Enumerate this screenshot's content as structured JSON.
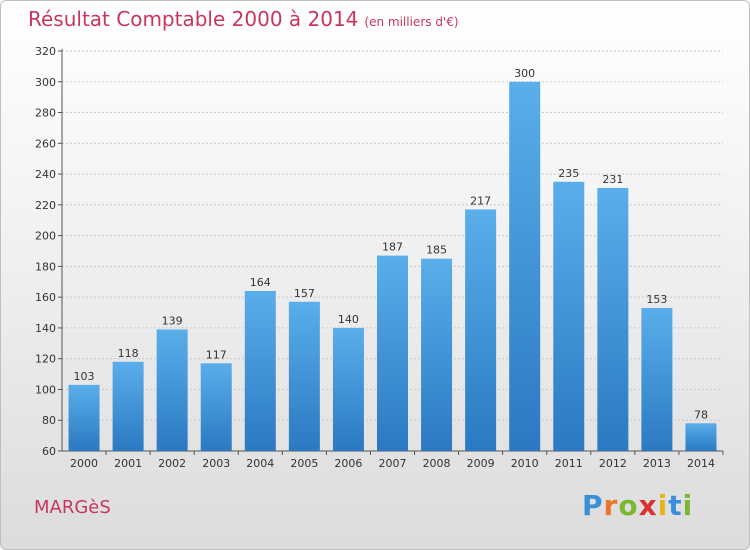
{
  "header": {
    "title": "Résultat Comptable 2000 à 2014",
    "subtitle": "(en milliers d'€)"
  },
  "footer": {
    "commune": "MARGèS",
    "logo_letters": [
      "P",
      "r",
      "o",
      "x",
      "i",
      "t",
      "i"
    ],
    "logo_colors": [
      "#3a8fd8",
      "#e9742b",
      "#7bb734",
      "#d9322f",
      "#e9b320",
      "#3a8fd8",
      "#7bb734"
    ]
  },
  "colors": {
    "bar": "#4a9fe0",
    "bar_dark": "#2f7fc7",
    "title": "#c8365e"
  },
  "chart_data": {
    "type": "bar",
    "title": "Résultat Comptable 2000 à 2014",
    "subtitle": "(en milliers d'€)",
    "categories": [
      "2000",
      "2001",
      "2002",
      "2003",
      "2004",
      "2005",
      "2006",
      "2007",
      "2008",
      "2009",
      "2010",
      "2011",
      "2012",
      "2013",
      "2014"
    ],
    "values": [
      103,
      118,
      139,
      117,
      164,
      157,
      140,
      187,
      185,
      217,
      300,
      235,
      231,
      153,
      78
    ],
    "ylim": [
      60,
      320
    ],
    "yticks": [
      60,
      80,
      100,
      120,
      140,
      160,
      180,
      200,
      220,
      240,
      260,
      280,
      300,
      320
    ],
    "grid": true,
    "legend": "none"
  }
}
